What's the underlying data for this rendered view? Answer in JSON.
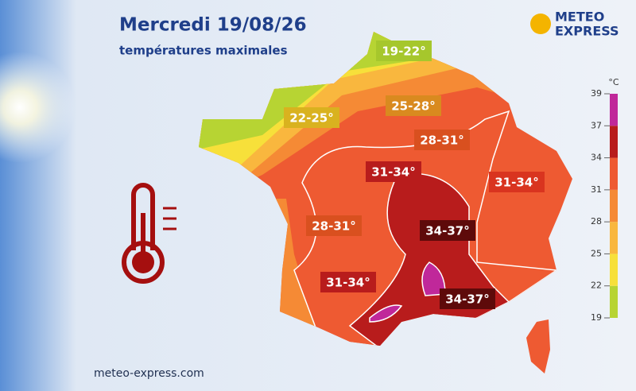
{
  "header": {
    "title": "Mercredi 19/08/26",
    "subtitle": "températures maximales"
  },
  "logo": {
    "line1": "METEO",
    "line2": "EXPRESS"
  },
  "zones": [
    {
      "label": "19-22°",
      "color": "#a6c72c"
    },
    {
      "label": "22-25°",
      "color": "#d9b21f"
    },
    {
      "label": "25-28°",
      "color": "#d98a1f"
    },
    {
      "label": "28-31°",
      "color": "#d9501f"
    },
    {
      "label": "31-34°",
      "color": "#b81c1c"
    },
    {
      "label": "31-34°",
      "color": "#d9341f"
    },
    {
      "label": "28-31°",
      "color": "#d9501f"
    },
    {
      "label": "34-37°",
      "color": "#5e0a0a"
    },
    {
      "label": "31-34°",
      "color": "#b81c1c"
    },
    {
      "label": "34-37°",
      "color": "#5e0a0a"
    }
  ],
  "legend": {
    "unit": "°C",
    "ticks": [
      19,
      22,
      25,
      28,
      31,
      34,
      37,
      39
    ],
    "colors": [
      "#b7d433",
      "#f7e03a",
      "#f9b73e",
      "#f58a35",
      "#ee5a32",
      "#b81c1c",
      "#c0289a"
    ]
  },
  "footer": "meteo-express.com"
}
